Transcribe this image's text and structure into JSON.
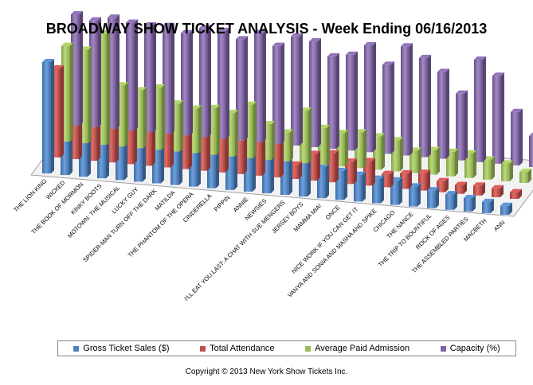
{
  "chart_data": {
    "type": "bar",
    "title": "BROADWAY SHOW TICKET ANALYSIS - Week Ending 06/16/2013",
    "categories": [
      "THE LION KING",
      "WICKED",
      "THE BOOK OF MORMON",
      "KINKY BOOTS",
      "MOTOWN: THE MUSICAL",
      "LUCKY GUY",
      "SPIDER-MAN TURN OFF THE DARK",
      "MATILDA",
      "THE PHANTOM OF THE OPERA",
      "CINDERELLA",
      "PIPPIN",
      "ANNIE",
      "NEWSIES",
      "I'LL EAT YOU LAST: A CHAT WITH SUE MENGERS",
      "JERSEY BOYS",
      "MAMMA MIA!",
      "ONCE",
      "NICE WORK IF YOU CAN GET IT",
      "VANYA AND SONIA AND MASHA AND SPIKE",
      "CHICAGO",
      "THE NANCE",
      "THE TRIP TO BOUNTIFUL",
      "ROCK OF AGES",
      "THE ASSEMBLED PARTIES",
      "MACBETH",
      "ANN"
    ],
    "series": [
      {
        "name": "Gross Ticket Sales ($)",
        "color": "#4F81BD",
        "values": [
          100,
          96,
          92,
          79,
          75,
          71,
          62,
          59,
          52,
          50,
          44,
          40,
          35,
          32,
          30,
          28,
          26,
          24,
          22,
          22,
          18,
          16,
          14,
          12,
          10,
          8
        ]
      },
      {
        "name": "Total Attendance",
        "color": "#C0504D",
        "values": [
          80,
          76,
          62,
          60,
          58,
          54,
          54,
          50,
          46,
          42,
          30,
          35,
          33,
          13,
          24,
          26,
          20,
          22,
          12,
          14,
          16,
          10,
          8,
          9,
          8,
          6
        ]
      },
      {
        "name": "Average Paid Admission",
        "color": "#9BBB59",
        "values": [
          86,
          84,
          100,
          55,
          52,
          56,
          43,
          40,
          42,
          39,
          48,
          32,
          26,
          47,
          33,
          30,
          32,
          30,
          28,
          20,
          22,
          22,
          22,
          18,
          16,
          10
        ]
      },
      {
        "name": "Capacity (%)",
        "color": "#8064A2",
        "values": [
          100,
          96,
          100,
          97,
          96,
          97,
          92,
          98,
          97,
          91,
          98,
          88,
          98,
          95,
          83,
          86,
          96,
          80,
          98,
          89,
          78,
          60,
          92,
          79,
          48,
          28
        ]
      }
    ]
  },
  "legend": [
    {
      "label": "Gross Ticket Sales ($)",
      "color": "#4F81BD"
    },
    {
      "label": "Total Attendance",
      "color": "#C0504D"
    },
    {
      "label": "Average Paid Admission",
      "color": "#9BBB59"
    },
    {
      "label": "Capacity (%)",
      "color": "#8064A2"
    }
  ],
  "copyright": "Copyright © 2013 New York Show Tickets Inc."
}
